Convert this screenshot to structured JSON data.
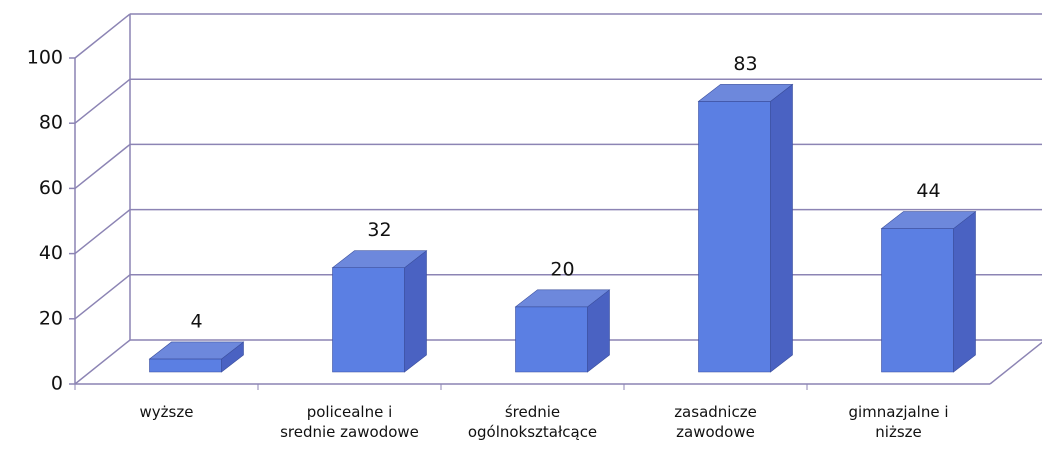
{
  "chart_data": {
    "type": "bar3d",
    "categories": [
      "wyższe",
      "policealne i\nsrednie zawodowe",
      "średnie\nogólnokształcące",
      "zasadnicze\nzawodowe",
      "gimnazjalne i\nniższe"
    ],
    "values": [
      4,
      32,
      20,
      83,
      44
    ],
    "color": "#5b7fe3",
    "ylim": [
      0,
      100
    ],
    "yticks": [
      0,
      20,
      40,
      60,
      80,
      100
    ],
    "grid": true
  }
}
